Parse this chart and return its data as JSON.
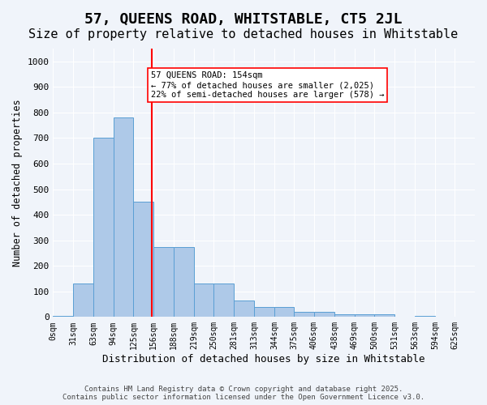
{
  "title_line1": "57, QUEENS ROAD, WHITSTABLE, CT5 2JL",
  "title_line2": "Size of property relative to detached houses in Whitstable",
  "xlabel": "Distribution of detached houses by size in Whitstable",
  "ylabel": "Number of detached properties",
  "bar_color": "#aec9e8",
  "bar_edge_color": "#5a9fd4",
  "vline_x": 154,
  "vline_color": "red",
  "annotation_text": "57 QUEENS ROAD: 154sqm\n← 77% of detached houses are smaller (2,025)\n22% of semi-detached houses are larger (578) →",
  "annotation_box_color": "white",
  "annotation_box_edge": "red",
  "categories": [
    "0sqm",
    "31sqm",
    "63sqm",
    "94sqm",
    "125sqm",
    "156sqm",
    "188sqm",
    "219sqm",
    "250sqm",
    "281sqm",
    "313sqm",
    "344sqm",
    "375sqm",
    "406sqm",
    "438sqm",
    "469sqm",
    "500sqm",
    "531sqm",
    "563sqm",
    "594sqm",
    "625sqm"
  ],
  "bin_edges": [
    0,
    31,
    63,
    94,
    125,
    156,
    188,
    219,
    250,
    281,
    313,
    344,
    375,
    406,
    438,
    469,
    500,
    531,
    563,
    594,
    625
  ],
  "bar_heights": [
    5,
    130,
    700,
    780,
    450,
    275,
    275,
    130,
    130,
    65,
    38,
    38,
    20,
    20,
    10,
    10,
    10,
    0,
    5,
    0
  ],
  "ylim": [
    0,
    1050
  ],
  "yticks": [
    0,
    100,
    200,
    300,
    400,
    500,
    600,
    700,
    800,
    900,
    1000
  ],
  "background_color": "#f0f4fa",
  "grid_color": "white",
  "footer_text": "Contains HM Land Registry data © Crown copyright and database right 2025.\nContains public sector information licensed under the Open Government Licence v3.0.",
  "title_fontsize": 13,
  "subtitle_fontsize": 11,
  "bin_width": 31
}
